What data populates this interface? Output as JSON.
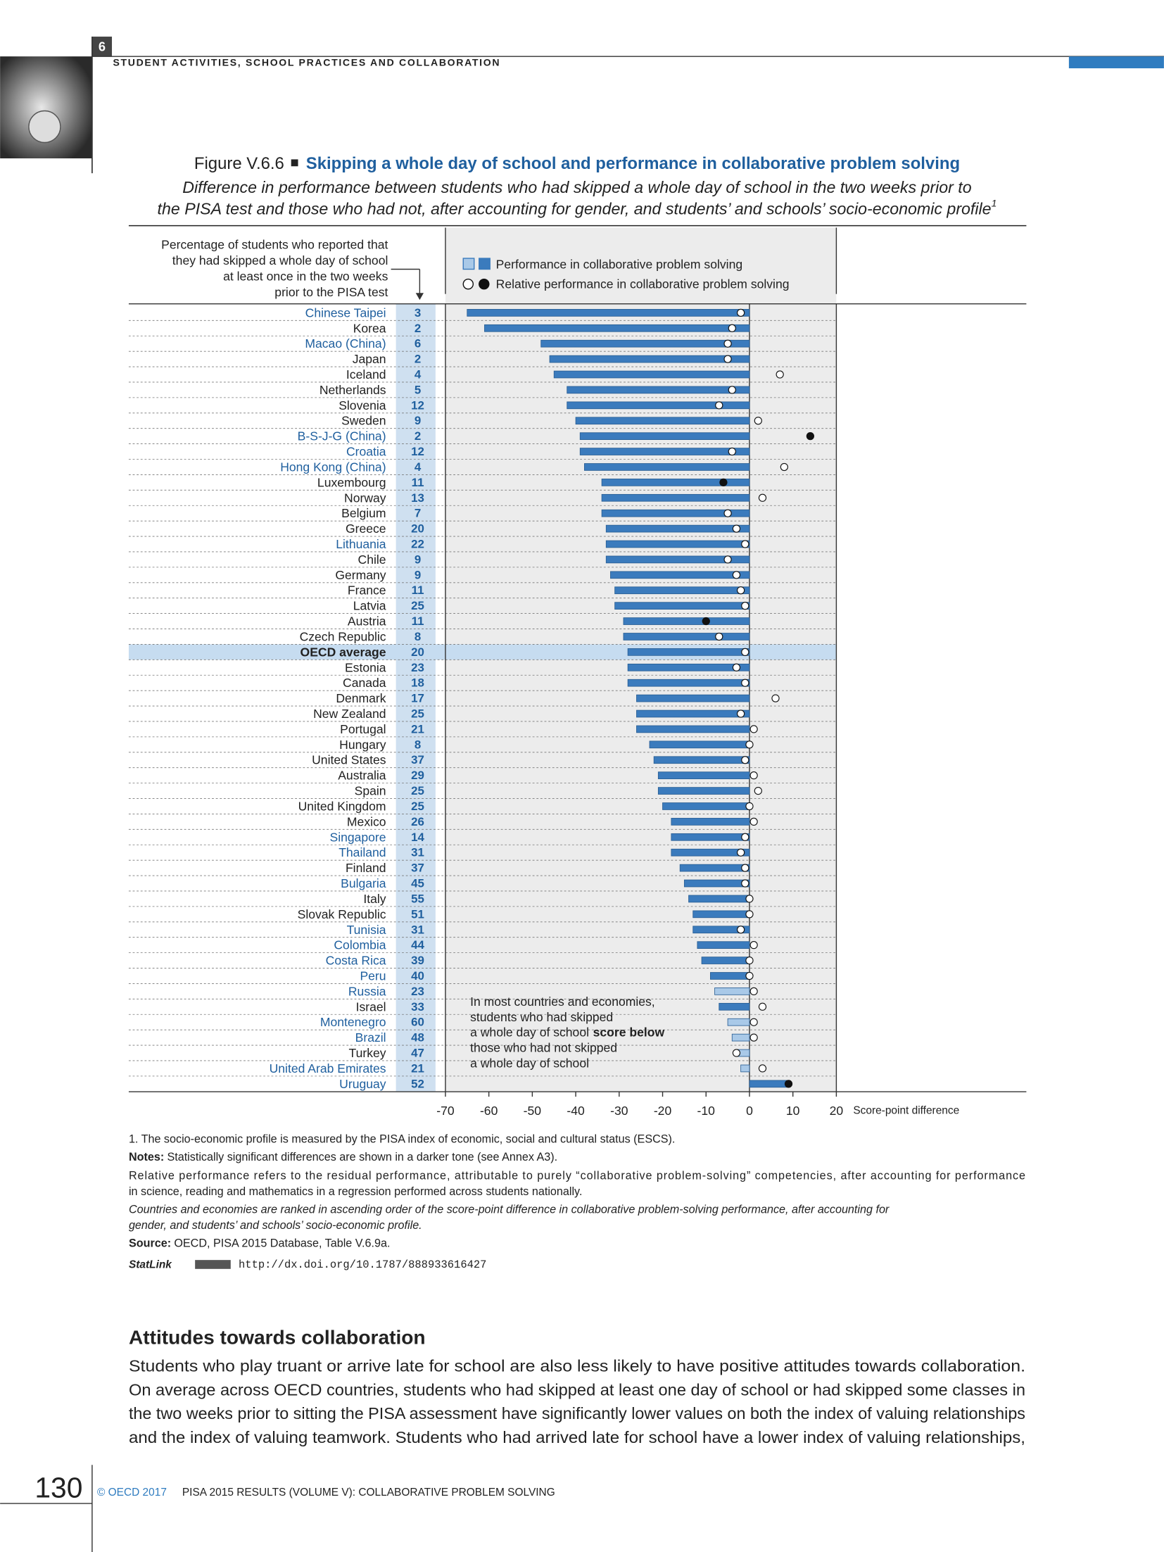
{
  "header": {
    "section_number": "6",
    "running_title": "STUDENT ACTIVITIES, SCHOOL PRACTICES AND COLLABORATION"
  },
  "figure": {
    "label": "Figure V.6.6",
    "title": "Skipping a whole day of school and performance in collaborative problem solving",
    "subtitle": [
      "Difference in performance between students who had skipped a whole day of school in the two weeks prior to",
      "the PISA test and those who had not, after accounting for gender, and students’ and schools’ socio-economic profile"
    ],
    "subtitle_note": "1"
  },
  "chart_data": {
    "type": "bar",
    "categories": [
      "Chinese Taipei",
      "Korea",
      "Macao (China)",
      "Japan",
      "Iceland",
      "Netherlands",
      "Slovenia",
      "Sweden",
      "B-S-J-G (China)",
      "Croatia",
      "Hong Kong (China)",
      "Luxembourg",
      "Norway",
      "Belgium",
      "Greece",
      "Lithuania",
      "Chile",
      "Germany",
      "France",
      "Latvia",
      "Austria",
      "Czech Republic",
      "OECD average",
      "Estonia",
      "Canada",
      "Denmark",
      "New Zealand",
      "Portugal",
      "Hungary",
      "United States",
      "Australia",
      "Spain",
      "United Kingdom",
      "Mexico",
      "Singapore",
      "Thailand",
      "Finland",
      "Bulgaria",
      "Italy",
      "Slovak Republic",
      "Tunisia",
      "Colombia",
      "Costa Rica",
      "Peru",
      "Russia",
      "Israel",
      "Montenegro",
      "Brazil",
      "Turkey",
      "United Arab Emirates",
      "Uruguay"
    ],
    "partner": [
      true,
      false,
      true,
      false,
      false,
      false,
      false,
      false,
      true,
      true,
      true,
      false,
      false,
      false,
      false,
      true,
      false,
      false,
      false,
      false,
      false,
      false,
      false,
      false,
      false,
      false,
      false,
      false,
      false,
      false,
      false,
      false,
      false,
      false,
      true,
      true,
      false,
      true,
      false,
      false,
      true,
      true,
      true,
      true,
      true,
      false,
      true,
      true,
      false,
      true,
      true
    ],
    "highlight": "OECD average",
    "percentages": {
      "header": [
        "Percentage of students who reported that",
        "they had skipped a whole day of school",
        "at least once in the two weeks",
        "prior to the PISA test"
      ],
      "values": [
        3,
        2,
        6,
        2,
        4,
        5,
        12,
        9,
        2,
        12,
        4,
        11,
        13,
        7,
        20,
        22,
        9,
        9,
        11,
        25,
        11,
        8,
        20,
        23,
        18,
        17,
        25,
        21,
        8,
        37,
        29,
        25,
        25,
        26,
        14,
        31,
        37,
        45,
        55,
        51,
        31,
        44,
        39,
        40,
        23,
        33,
        60,
        48,
        47,
        21,
        52
      ]
    },
    "series": [
      {
        "name": "Performance in collaborative problem solving",
        "color": "#3b7bbd",
        "light_color": "#a9c9e8",
        "values": [
          -65,
          -61,
          -48,
          -46,
          -45,
          -42,
          -42,
          -40,
          -39,
          -39,
          -38,
          -34,
          -34,
          -34,
          -33,
          -33,
          -33,
          -32,
          -31,
          -31,
          -29,
          -29,
          -28,
          -28,
          -28,
          -26,
          -26,
          -26,
          -23,
          -22,
          -21,
          -21,
          -20,
          -18,
          -18,
          -18,
          -16,
          -15,
          -14,
          -13,
          -13,
          -12,
          -11,
          -9,
          -8,
          -7,
          -5,
          -4,
          -3,
          -2,
          9
        ],
        "significant": [
          true,
          true,
          true,
          true,
          true,
          true,
          true,
          true,
          true,
          true,
          true,
          true,
          true,
          true,
          true,
          true,
          true,
          true,
          true,
          true,
          true,
          true,
          true,
          true,
          true,
          true,
          true,
          true,
          true,
          true,
          true,
          true,
          true,
          true,
          true,
          true,
          true,
          true,
          true,
          true,
          true,
          true,
          true,
          true,
          false,
          true,
          false,
          false,
          false,
          false,
          true
        ]
      },
      {
        "name": "Relative performance in collaborative problem solving",
        "color": "#111111",
        "values": [
          -2,
          -4,
          -5,
          -5,
          7,
          -4,
          -7,
          2,
          14,
          -4,
          8,
          -6,
          3,
          -5,
          -3,
          -1,
          -5,
          -3,
          -2,
          -1,
          -10,
          -7,
          -1,
          -3,
          -1,
          6,
          -2,
          1,
          0,
          -1,
          1,
          2,
          0,
          1,
          -1,
          -2,
          -1,
          -1,
          0,
          0,
          -2,
          1,
          0,
          0,
          1,
          3,
          1,
          1,
          -3,
          3,
          9
        ],
        "significant": [
          false,
          false,
          false,
          false,
          false,
          false,
          false,
          false,
          true,
          false,
          false,
          true,
          false,
          false,
          false,
          false,
          false,
          false,
          false,
          false,
          true,
          false,
          false,
          false,
          false,
          false,
          false,
          false,
          false,
          false,
          false,
          false,
          false,
          false,
          false,
          false,
          false,
          false,
          false,
          false,
          false,
          false,
          false,
          false,
          false,
          false,
          false,
          false,
          false,
          false,
          true
        ]
      }
    ],
    "xlim": [
      -70,
      20
    ],
    "xticks": [
      -70,
      -60,
      -50,
      -40,
      -30,
      -20,
      -10,
      0,
      10,
      20
    ],
    "x_label": "Score-point difference",
    "annotation": [
      "In most countries and economies,",
      "students who had skipped",
      [
        "a whole day of school",
        "score below"
      ],
      "those who had not skipped",
      "a whole day of school"
    ]
  },
  "notes": {
    "footnote": "1. The socio-economic profile is measured by the PISA index of economic, social and cultural status (ESCS).",
    "notes": {
      "lead": "Notes:",
      "text": "Statistically significant differences are shown in a darker tone (see Annex A3)."
    },
    "relative": [
      "Relative performance refers to the residual performance, attributable to purely “collaborative problem-solving” competencies, after accounting for performance",
      "in science, reading and mathematics in a regression performed across students nationally."
    ],
    "ranking": [
      "Countries and economies are ranked in ascending order of the score-point difference in collaborative problem-solving performance, after accounting for",
      "gender, and students’ and schools’ socio-economic profile."
    ],
    "source": {
      "lead": "Source:",
      "text": "OECD, PISA 2015 Database, Table V.6.9a."
    },
    "statlink": {
      "label": "StatLink",
      "url": "http://dx.doi.org/10.1787/888933616427"
    }
  },
  "section": {
    "heading": "Attitudes towards collaboration",
    "paragraph": [
      "Students who play truant or arrive late for school are also less likely to have positive attitudes towards collaboration.",
      "On average across OECD countries, students who had skipped at least one day of school or had skipped some classes in",
      "the two weeks prior to sitting the PISA assessment have significantly lower values on both the index of valuing relationships",
      "and the index of valuing teamwork. Students who had arrived late for school have a lower index of valuing relationships,"
    ]
  },
  "footer": {
    "page_number": "130",
    "copyright": "© OECD 2017",
    "publication": "PISA 2015 RESULTS (VOLUME V): COLLABORATIVE PROBLEM SOLVING"
  }
}
